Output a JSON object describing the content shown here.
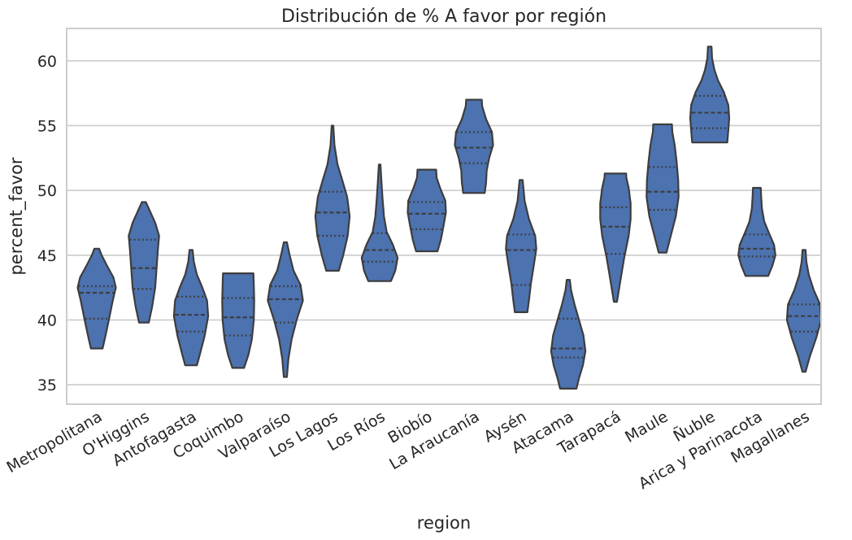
{
  "chart_data": {
    "type": "violin",
    "title": "Distribución de % A favor por región",
    "xlabel": "region",
    "ylabel": "percent_favor",
    "ylim": [
      33.5,
      62.5
    ],
    "yticks": [
      35,
      40,
      45,
      50,
      55,
      60
    ],
    "grid": "horizontal",
    "inner": "quartile",
    "colors": {
      "violin_fill": "#4c72b0",
      "violin_edge": "#3d3d3d",
      "grid": "#cccccc",
      "spine": "#cccccc",
      "text": "#262626"
    },
    "categories": [
      "Metropolitana",
      "O'Higgins",
      "Antofagasta",
      "Coquimbo",
      "Valparaíso",
      "Los Lagos",
      "Los Ríos",
      "Biobío",
      "La Araucanía",
      "Aysén",
      "Atacama",
      "Tarapacá",
      "Maule",
      "Ñuble",
      "Arica y Parinacota",
      "Magallanes"
    ],
    "violins": [
      {
        "min": 37.8,
        "max": 45.5,
        "q1": 40.1,
        "median": 42.1,
        "q3": 42.6,
        "profile": [
          [
            37.8,
            0.3
          ],
          [
            38.8,
            0.45
          ],
          [
            40.0,
            0.62
          ],
          [
            41.5,
            0.82
          ],
          [
            42.5,
            0.98
          ],
          [
            43.3,
            0.85
          ],
          [
            44.2,
            0.52
          ],
          [
            45.0,
            0.25
          ],
          [
            45.5,
            0.12
          ]
        ]
      },
      {
        "min": 39.8,
        "max": 49.1,
        "q1": 42.4,
        "median": 44.0,
        "q3": 46.2,
        "profile": [
          [
            39.8,
            0.25
          ],
          [
            41.0,
            0.42
          ],
          [
            42.5,
            0.58
          ],
          [
            44.0,
            0.65
          ],
          [
            45.5,
            0.72
          ],
          [
            46.5,
            0.78
          ],
          [
            47.5,
            0.58
          ],
          [
            48.5,
            0.28
          ],
          [
            49.1,
            0.1
          ]
        ]
      },
      {
        "min": 36.5,
        "max": 45.4,
        "q1": 39.1,
        "median": 40.4,
        "q3": 41.8,
        "profile": [
          [
            36.5,
            0.3
          ],
          [
            37.5,
            0.48
          ],
          [
            38.8,
            0.7
          ],
          [
            40.3,
            0.88
          ],
          [
            41.5,
            0.82
          ],
          [
            42.5,
            0.58
          ],
          [
            43.5,
            0.3
          ],
          [
            44.5,
            0.14
          ],
          [
            45.4,
            0.08
          ]
        ]
      },
      {
        "min": 36.3,
        "max": 43.6,
        "q1": 38.8,
        "median": 40.2,
        "q3": 41.7,
        "profile": [
          [
            36.3,
            0.3
          ],
          [
            37.3,
            0.52
          ],
          [
            38.5,
            0.7
          ],
          [
            40.0,
            0.8
          ],
          [
            41.5,
            0.82
          ],
          [
            42.7,
            0.8
          ],
          [
            43.6,
            0.78
          ]
        ]
      },
      {
        "min": 35.6,
        "max": 46.0,
        "q1": 39.8,
        "median": 41.6,
        "q3": 42.6,
        "profile": [
          [
            35.6,
            0.08
          ],
          [
            37.0,
            0.16
          ],
          [
            38.5,
            0.32
          ],
          [
            40.0,
            0.58
          ],
          [
            41.5,
            0.9
          ],
          [
            42.7,
            0.78
          ],
          [
            43.8,
            0.42
          ],
          [
            45.0,
            0.22
          ],
          [
            46.0,
            0.08
          ]
        ]
      },
      {
        "min": 43.8,
        "max": 55.0,
        "q1": 46.5,
        "median": 48.3,
        "q3": 49.9,
        "profile": [
          [
            43.8,
            0.32
          ],
          [
            45.0,
            0.55
          ],
          [
            46.5,
            0.78
          ],
          [
            48.0,
            0.88
          ],
          [
            49.5,
            0.75
          ],
          [
            50.8,
            0.5
          ],
          [
            52.0,
            0.26
          ],
          [
            53.5,
            0.1
          ],
          [
            55.0,
            0.04
          ]
        ]
      },
      {
        "min": 43.0,
        "max": 52.0,
        "q1": 44.5,
        "median": 45.4,
        "q3": 46.7,
        "profile": [
          [
            43.0,
            0.58
          ],
          [
            43.8,
            0.8
          ],
          [
            44.8,
            0.92
          ],
          [
            45.8,
            0.68
          ],
          [
            46.8,
            0.36
          ],
          [
            48.0,
            0.22
          ],
          [
            49.5,
            0.14
          ],
          [
            51.0,
            0.08
          ],
          [
            52.0,
            0.04
          ]
        ]
      },
      {
        "min": 45.3,
        "max": 51.6,
        "q1": 47.0,
        "median": 48.2,
        "q3": 49.1,
        "profile": [
          [
            45.3,
            0.55
          ],
          [
            46.2,
            0.72
          ],
          [
            47.2,
            0.85
          ],
          [
            48.3,
            0.98
          ],
          [
            49.2,
            0.95
          ],
          [
            50.2,
            0.68
          ],
          [
            51.0,
            0.5
          ],
          [
            51.6,
            0.48
          ]
        ]
      },
      {
        "min": 49.8,
        "max": 57.0,
        "q1": 52.1,
        "median": 53.3,
        "q3": 54.5,
        "profile": [
          [
            49.8,
            0.55
          ],
          [
            50.6,
            0.62
          ],
          [
            51.5,
            0.65
          ],
          [
            52.5,
            0.78
          ],
          [
            53.5,
            0.98
          ],
          [
            54.5,
            0.92
          ],
          [
            55.5,
            0.62
          ],
          [
            56.5,
            0.42
          ],
          [
            57.0,
            0.4
          ]
        ]
      },
      {
        "min": 40.6,
        "max": 50.8,
        "q1": 42.7,
        "median": 45.4,
        "q3": 46.6,
        "profile": [
          [
            40.6,
            0.32
          ],
          [
            41.5,
            0.4
          ],
          [
            42.8,
            0.5
          ],
          [
            44.2,
            0.65
          ],
          [
            45.5,
            0.78
          ],
          [
            46.5,
            0.72
          ],
          [
            47.8,
            0.4
          ],
          [
            49.2,
            0.18
          ],
          [
            50.8,
            0.08
          ]
        ]
      },
      {
        "min": 34.7,
        "max": 43.1,
        "q1": 37.1,
        "median": 37.8,
        "q3": 40.1,
        "profile": [
          [
            34.7,
            0.42
          ],
          [
            35.5,
            0.55
          ],
          [
            36.5,
            0.75
          ],
          [
            37.6,
            0.88
          ],
          [
            38.8,
            0.78
          ],
          [
            40.0,
            0.55
          ],
          [
            41.2,
            0.32
          ],
          [
            42.3,
            0.14
          ],
          [
            43.1,
            0.08
          ]
        ]
      },
      {
        "min": 41.4,
        "max": 51.3,
        "q1": 45.1,
        "median": 47.2,
        "q3": 48.7,
        "profile": [
          [
            41.4,
            0.08
          ],
          [
            43.0,
            0.25
          ],
          [
            44.8,
            0.45
          ],
          [
            46.5,
            0.68
          ],
          [
            47.8,
            0.78
          ],
          [
            49.0,
            0.78
          ],
          [
            50.2,
            0.68
          ],
          [
            51.0,
            0.56
          ],
          [
            51.3,
            0.55
          ]
        ]
      },
      {
        "min": 45.2,
        "max": 55.1,
        "q1": 48.5,
        "median": 49.9,
        "q3": 51.8,
        "profile": [
          [
            45.2,
            0.2
          ],
          [
            46.5,
            0.42
          ],
          [
            48.0,
            0.68
          ],
          [
            49.5,
            0.82
          ],
          [
            50.8,
            0.8
          ],
          [
            52.2,
            0.72
          ],
          [
            53.5,
            0.62
          ],
          [
            54.5,
            0.5
          ],
          [
            55.1,
            0.48
          ]
        ]
      },
      {
        "min": 53.7,
        "max": 61.1,
        "q1": 54.8,
        "median": 56.0,
        "q3": 57.3,
        "profile": [
          [
            53.7,
            0.9
          ],
          [
            54.6,
            0.95
          ],
          [
            55.6,
            1.0
          ],
          [
            56.6,
            0.95
          ],
          [
            57.6,
            0.72
          ],
          [
            58.5,
            0.42
          ],
          [
            59.3,
            0.24
          ],
          [
            60.2,
            0.12
          ],
          [
            61.1,
            0.09
          ]
        ]
      },
      {
        "min": 43.4,
        "max": 50.2,
        "q1": 44.9,
        "median": 45.5,
        "q3": 46.6,
        "profile": [
          [
            43.4,
            0.58
          ],
          [
            44.2,
            0.8
          ],
          [
            45.0,
            0.95
          ],
          [
            45.8,
            0.88
          ],
          [
            46.7,
            0.62
          ],
          [
            47.6,
            0.38
          ],
          [
            48.6,
            0.26
          ],
          [
            49.5,
            0.22
          ],
          [
            50.2,
            0.2
          ]
        ]
      },
      {
        "min": 36.0,
        "max": 45.4,
        "q1": 39.1,
        "median": 40.3,
        "q3": 41.2,
        "profile": [
          [
            36.0,
            0.08
          ],
          [
            37.2,
            0.3
          ],
          [
            38.6,
            0.62
          ],
          [
            40.0,
            0.88
          ],
          [
            41.2,
            0.82
          ],
          [
            42.3,
            0.5
          ],
          [
            43.5,
            0.24
          ],
          [
            44.5,
            0.12
          ],
          [
            45.4,
            0.08
          ]
        ]
      }
    ]
  }
}
